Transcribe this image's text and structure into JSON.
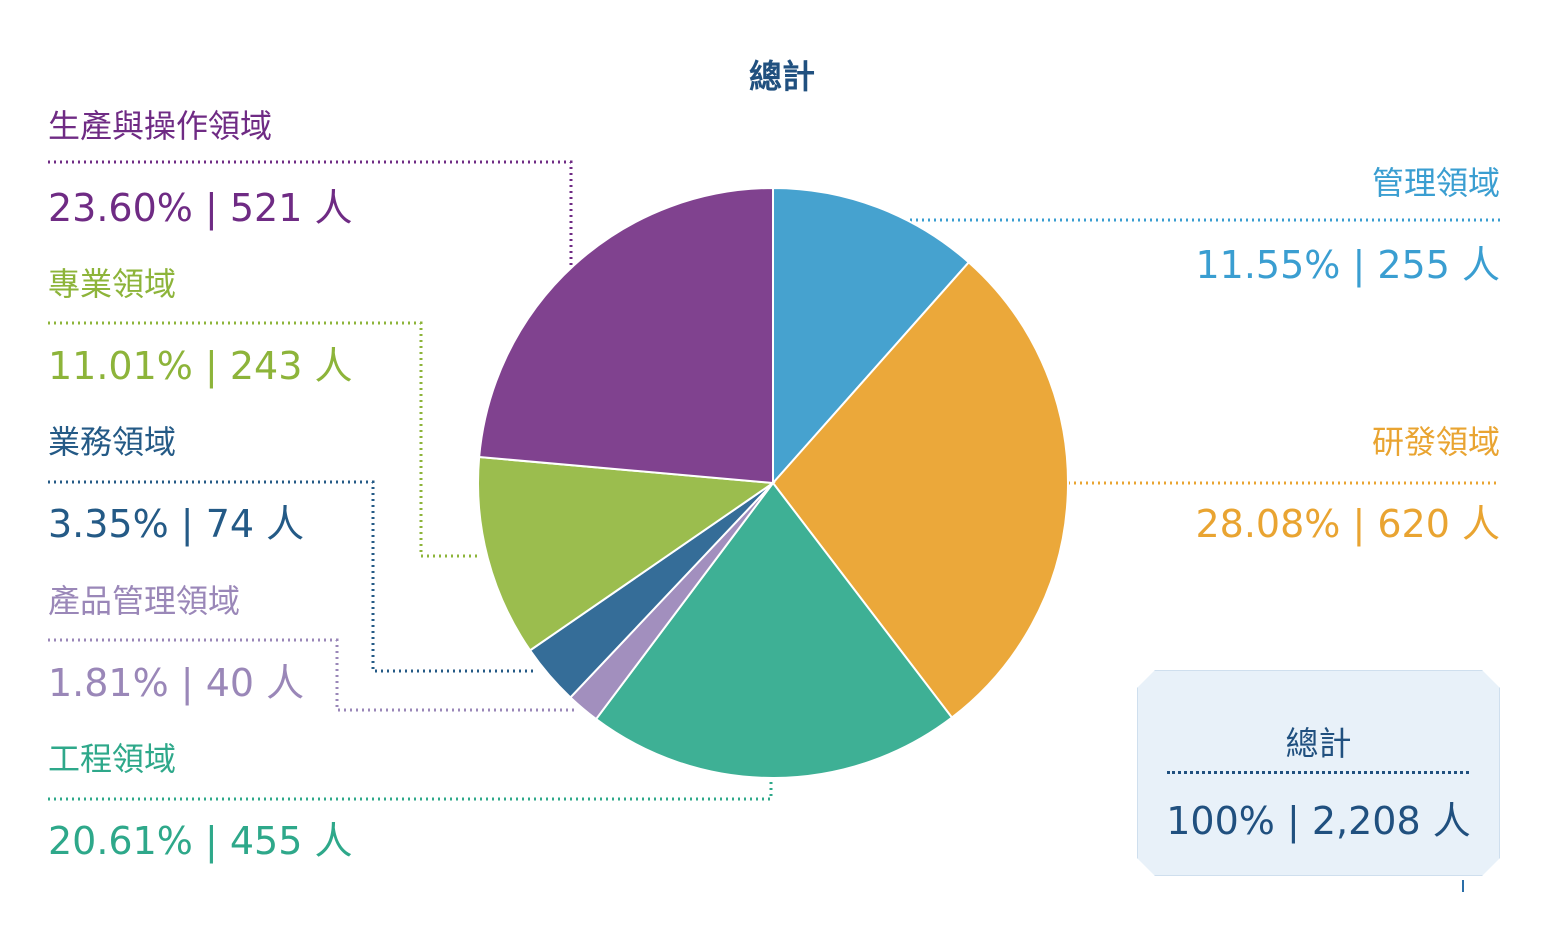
{
  "chart_data": {
    "type": "pie",
    "title": "總計",
    "start_angle_deg": 0,
    "direction": "clockwise",
    "slices": [
      {
        "label": "管理領域",
        "percent": "11.55%",
        "count": "255 人",
        "value": 255,
        "color": "#46a2cf"
      },
      {
        "label": "研發領域",
        "percent": "28.08%",
        "count": "620 人",
        "value": 620,
        "color": "#eba83a"
      },
      {
        "label": "工程領域",
        "percent": "20.61%",
        "count": "455 人",
        "value": 455,
        "color": "#3eb095"
      },
      {
        "label": "產品管理領域",
        "percent": "1.81%",
        "count": "40 人",
        "value": 40,
        "color": "#a28fbe"
      },
      {
        "label": "業務領域",
        "percent": "3.35%",
        "count": "74 人",
        "value": 74,
        "color": "#356d98"
      },
      {
        "label": "專業領域",
        "percent": "11.01%",
        "count": "243 人",
        "value": 243,
        "color": "#9bbd4e"
      },
      {
        "label": "生產與操作領域",
        "percent": "23.60%",
        "count": "521 人",
        "value": 521,
        "color": "#80428f"
      }
    ],
    "total": {
      "label": "總計",
      "percent": "100%",
      "count": "2,208 人",
      "value": 2208
    }
  },
  "colors": {
    "title": "#20507f",
    "total_box_bg": "#e8f1f9"
  }
}
